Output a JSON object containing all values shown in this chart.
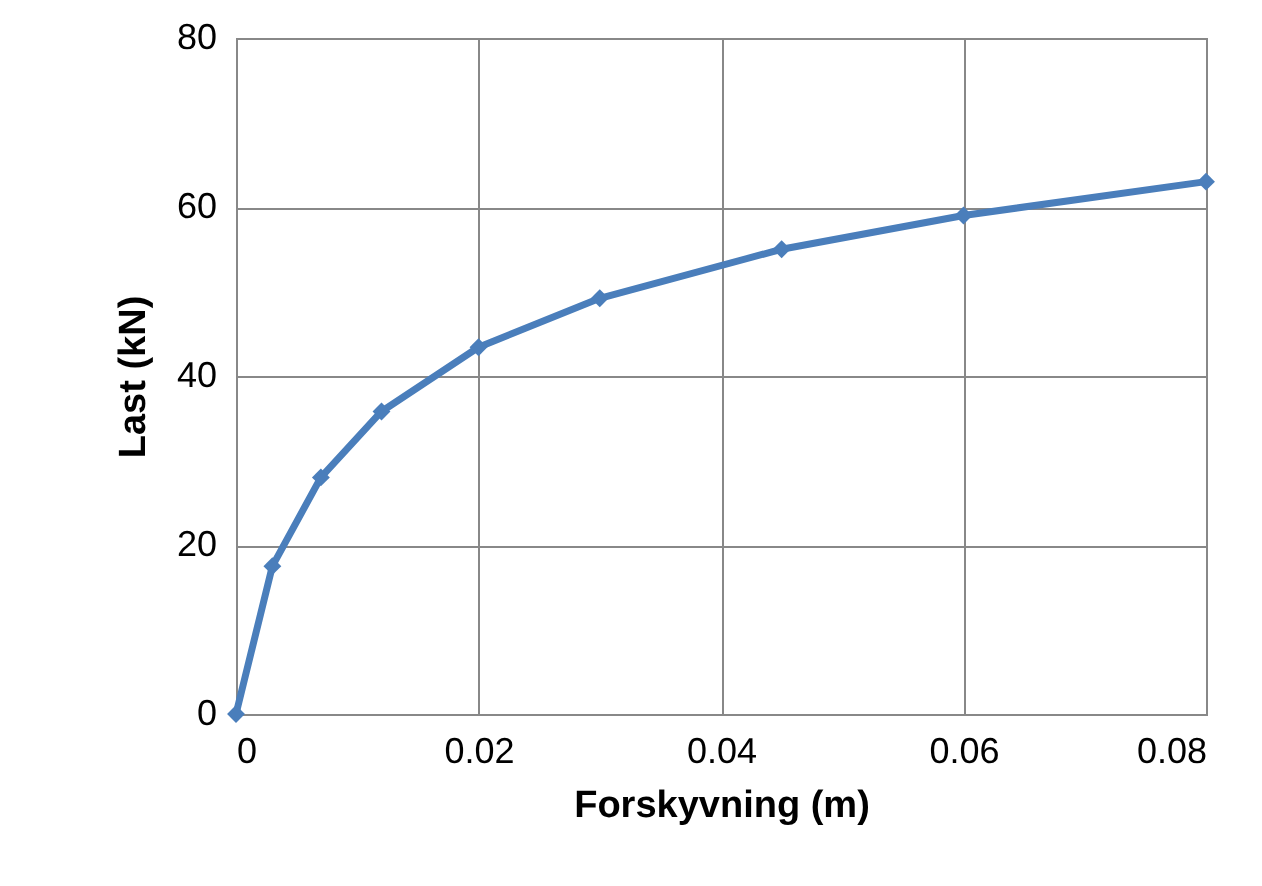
{
  "chart_data": {
    "type": "line",
    "xlabel": "Forskyvning (m)",
    "ylabel": "Last (kN)",
    "x": [
      0,
      0.003,
      0.007,
      0.012,
      0.02,
      0.03,
      0.045,
      0.06,
      0.08
    ],
    "series": [
      {
        "color": "#4a7ebb",
        "values": [
          0,
          17.5,
          28,
          35.8,
          43.4,
          49.2,
          55,
          59,
          63
        ]
      }
    ],
    "xlim": [
      0,
      0.08
    ],
    "xticks": [
      0,
      0.02,
      0.04,
      0.06,
      0.08
    ],
    "ylim": [
      0,
      80
    ],
    "yticks": [
      0,
      20,
      40,
      60,
      80
    ],
    "grid": true,
    "marker": "diamond",
    "line_style": "solid"
  }
}
